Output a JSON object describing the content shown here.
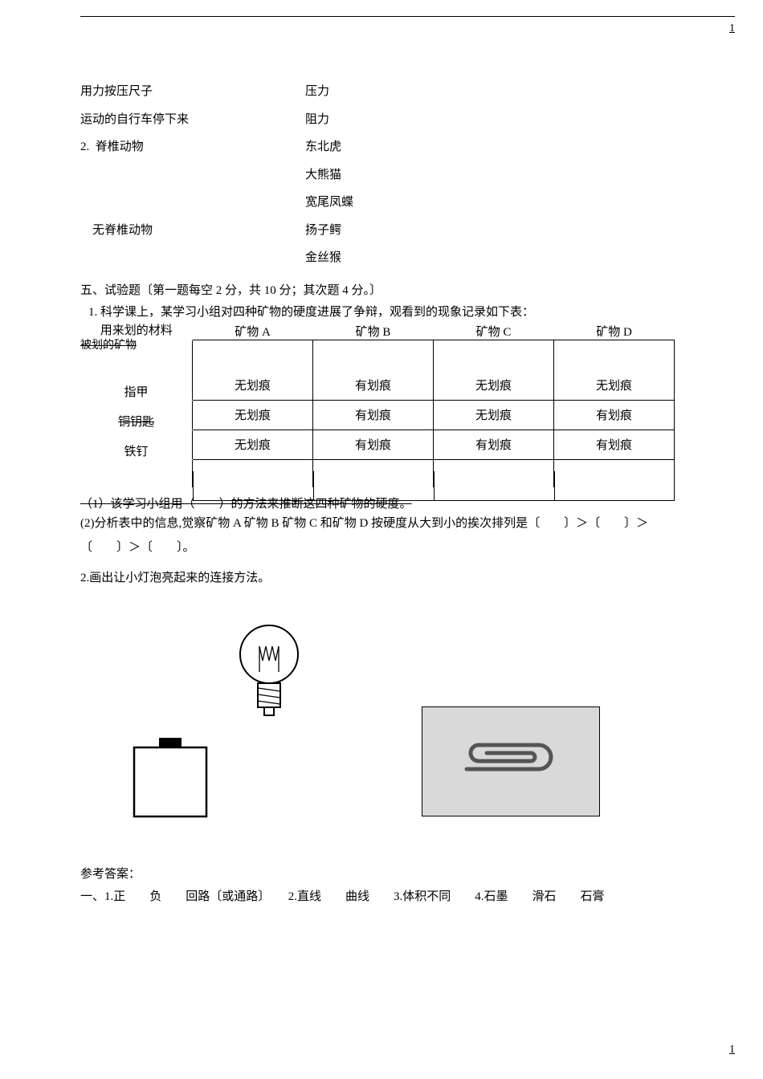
{
  "page_number_top": "1",
  "page_number_bottom": "1",
  "pairs": [
    {
      "left": "用力按压尺子",
      "right": "压力"
    },
    {
      "left": "运动的自行车停下来",
      "right": "阻力"
    },
    {
      "left": "2.  脊椎动物",
      "right": "东北虎"
    },
    {
      "left": "",
      "right": "大熊猫"
    },
    {
      "left": "",
      "right": "宽尾凤蝶"
    },
    {
      "left": "    无脊椎动物",
      "right": "扬子鳄"
    },
    {
      "left": "",
      "right": "金丝猴"
    }
  ],
  "section5": {
    "title": "五、试验题〔第一题每空 2 分，共 10 分；其次题 4 分。〕",
    "q1_intro": "1. 科学课上，某学习小组对四种矿物的硬度进展了争辩，观看到的现象记录如下表：",
    "table": {
      "header_left_line1": "用来划的材料",
      "header_left_line2": "被划的矿物",
      "cols": [
        "矿物 A",
        "矿物 B",
        "矿物 C",
        "矿物 D"
      ],
      "rows": [
        {
          "label": "指甲",
          "no_strike": true,
          "cells": [
            "无划痕",
            "有划痕",
            "无划痕",
            "无划痕"
          ]
        },
        {
          "label": "铜钥匙",
          "no_strike": false,
          "cells": [
            "无划痕",
            "有划痕",
            "无划痕",
            "有划痕"
          ]
        },
        {
          "label": "铁钉",
          "no_strike": true,
          "cells": [
            "无划痕",
            "有划痕",
            "有划痕",
            "有划痕"
          ]
        }
      ]
    },
    "q1_sub1": "（1）该学习小组用（　　）的方法来推断这四种矿物的硬度。",
    "q1_sub2": "(2)分析表中的信息,觉察矿物 A 矿物 B 矿物 C 和矿物 D 按硬度从大到小的挨次排列是〔　　〕＞〔　　〕＞〔　　〕＞〔　　〕。",
    "q2": "2.画出让小灯泡亮起来的连接方法。"
  },
  "answers": {
    "heading": "参考答案：",
    "line1": "一、1.正　　负　　回路〔或通路〕　　2.直线　　曲线　　3.体积不同　　4.石墨　　滑石　　石膏"
  }
}
